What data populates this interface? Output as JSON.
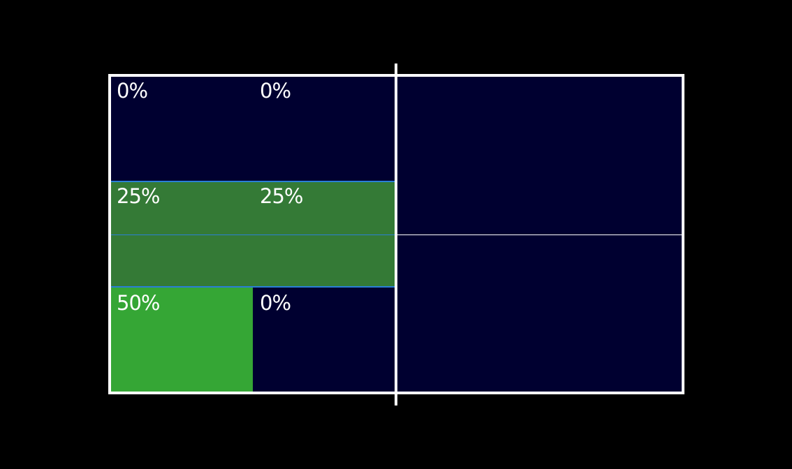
{
  "court": {
    "background": "#000030",
    "line_color": "#ffffff",
    "highlight_border": "#2a7fd6"
  },
  "zones": {
    "top_left": {
      "label": "0%",
      "color": "#000030"
    },
    "top_mid": {
      "label": "0%",
      "color": "#000030"
    },
    "mid_left": {
      "label": "25%",
      "color": "#347a36"
    },
    "mid_mid": {
      "label": "25%",
      "color": "#347a36"
    },
    "bottom_left": {
      "label": "50%",
      "color": "#35a635"
    },
    "bottom_mid": {
      "label": "0%",
      "color": "#000030"
    }
  }
}
